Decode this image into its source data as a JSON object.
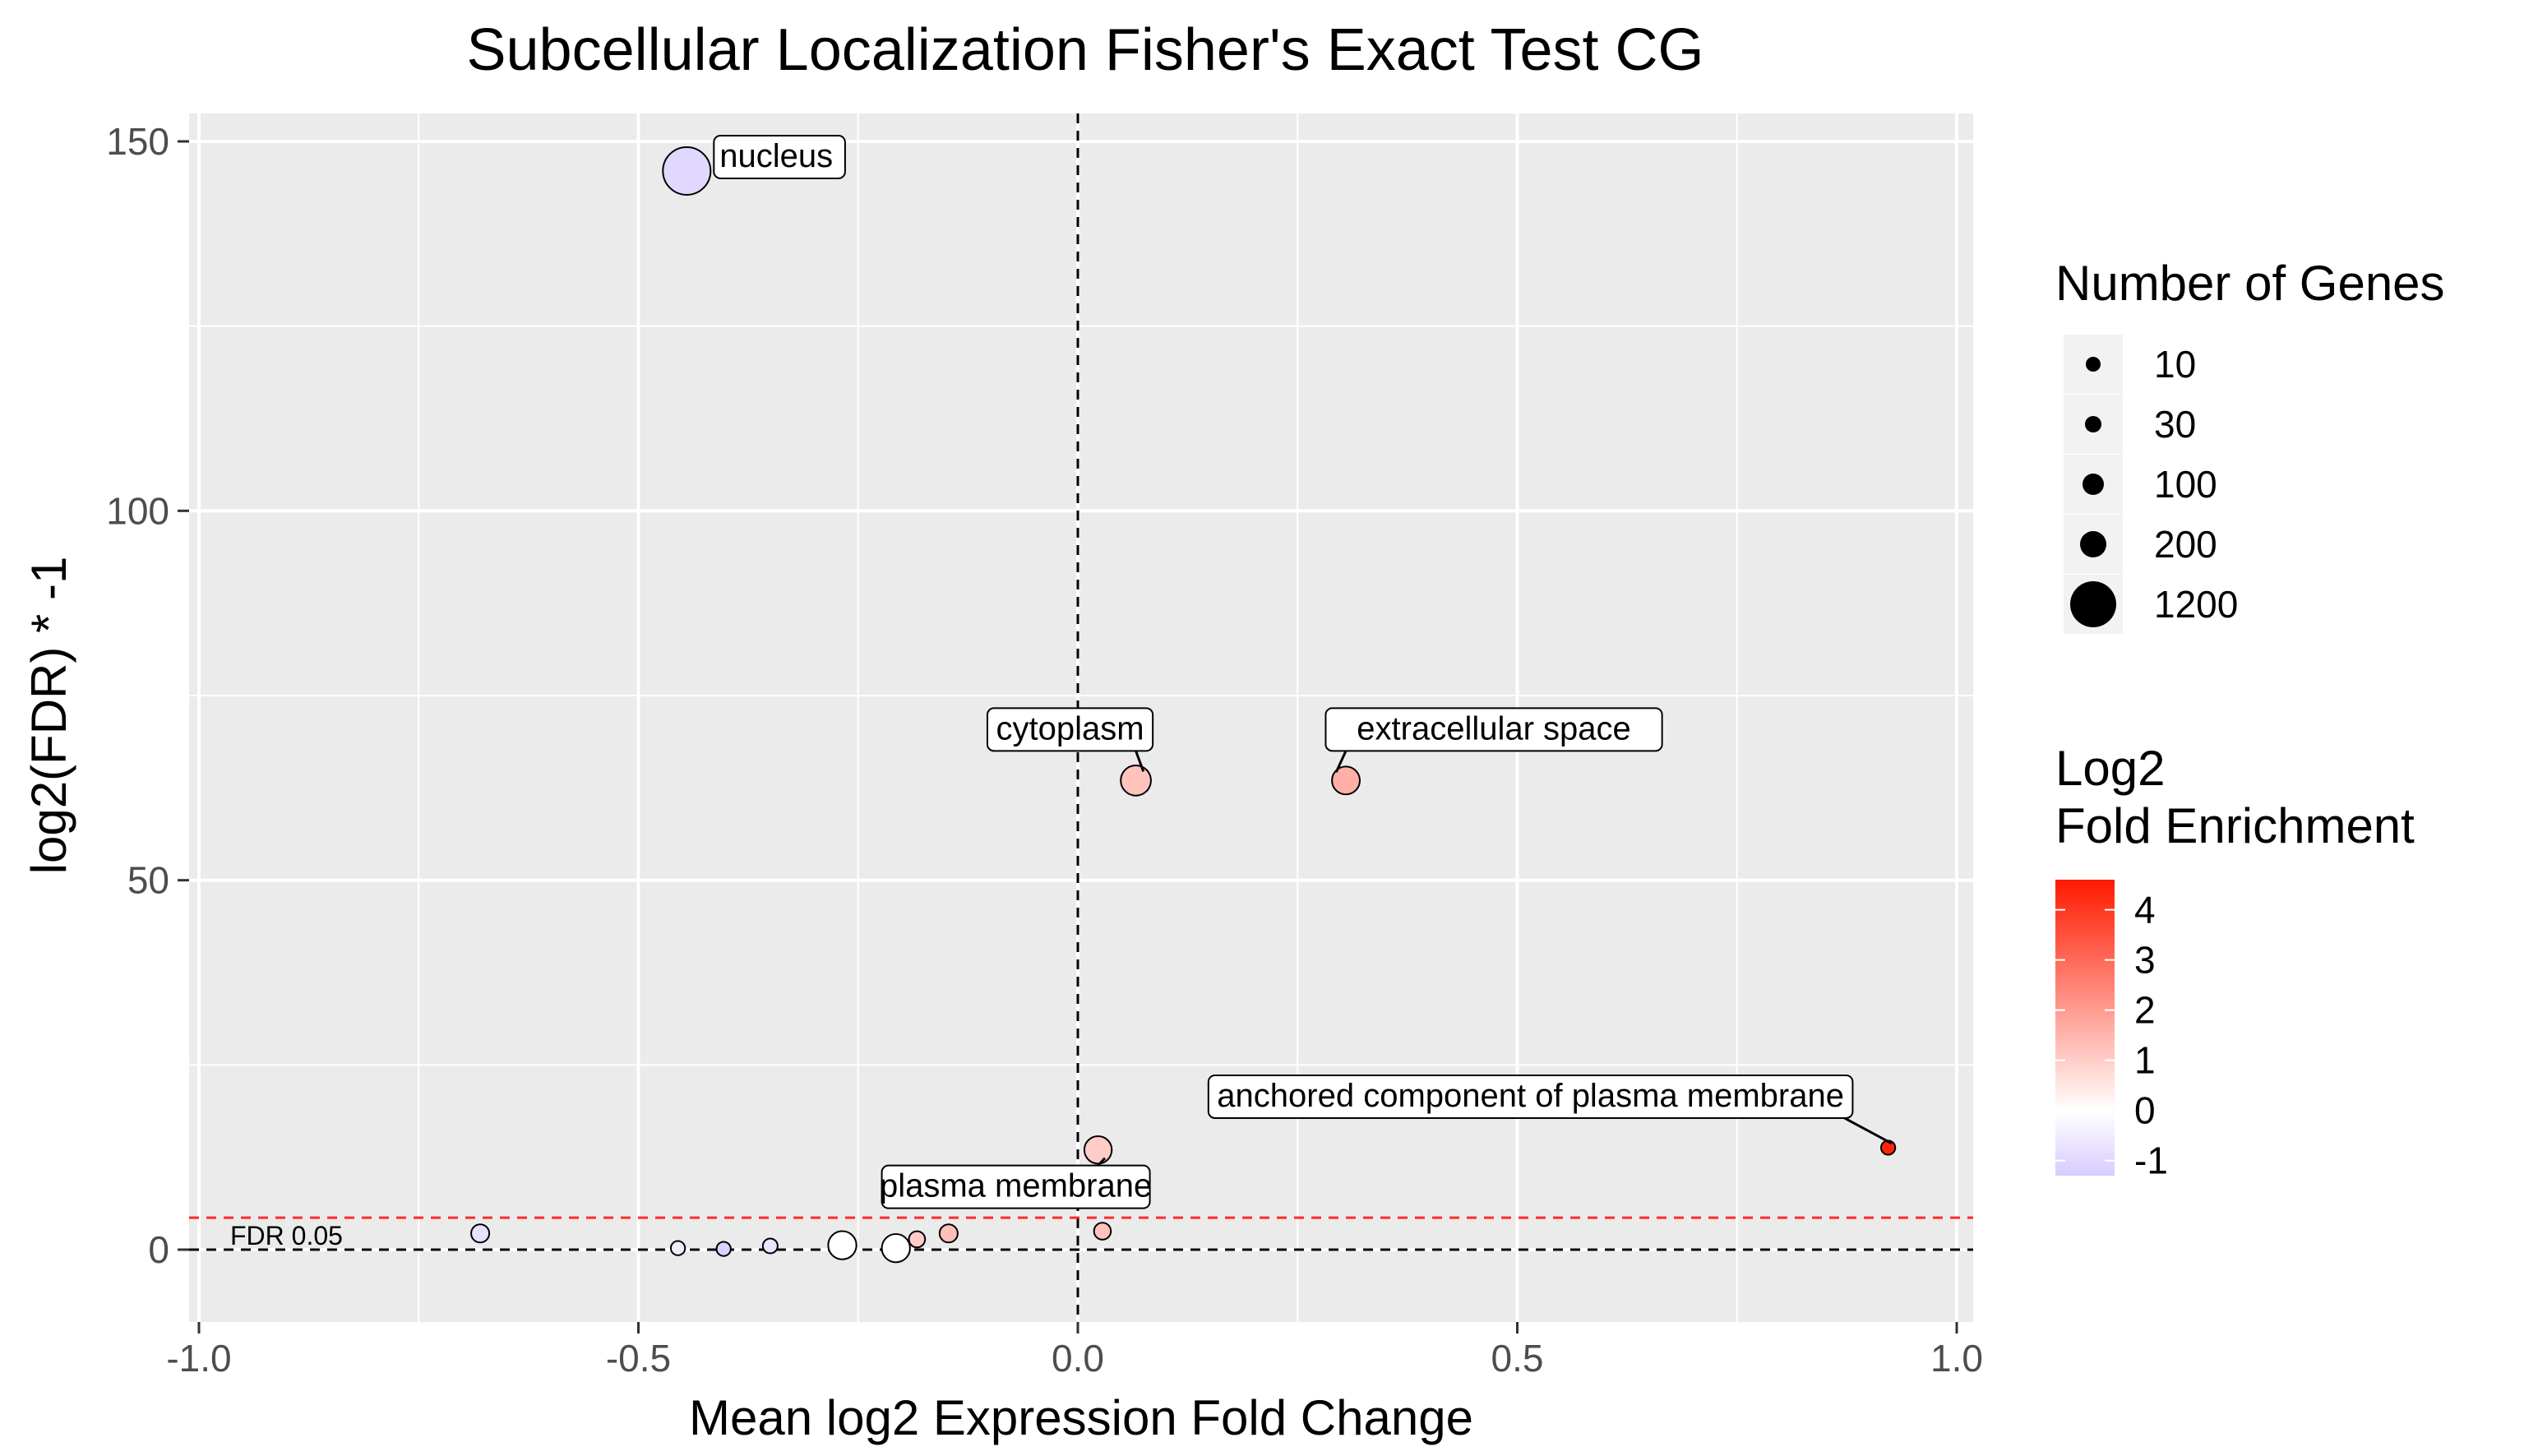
{
  "chart_data": {
    "type": "scatter",
    "title": "Subcellular Localization Fisher's Exact Test CG",
    "xlabel": "Mean log2 Expression Fold Change",
    "ylabel": "log2(FDR) * -1",
    "xlim": [
      -1.0,
      1.0
    ],
    "ylim": [
      -8,
      152
    ],
    "x_ticks": [
      "-1.0",
      "-0.5",
      "0.0",
      "0.5",
      "1.0"
    ],
    "y_ticks": [
      "0",
      "50",
      "100",
      "150"
    ],
    "grid": true,
    "vline_x": 0,
    "hline_fdr": {
      "y": 4.32,
      "color": "#ff2a2a",
      "label": "FDR 0.05"
    },
    "hline_zero": {
      "y": 0
    },
    "points": [
      {
        "x": -0.445,
        "y": 146.0,
        "genes": 1200,
        "fold": -1.0,
        "label": "nucleus"
      },
      {
        "x": 0.066,
        "y": 63.5,
        "genes": 200,
        "fold": 1.2,
        "label": "cytoplasm"
      },
      {
        "x": 0.305,
        "y": 63.5,
        "genes": 130,
        "fold": 1.6,
        "label": "extracellular space"
      },
      {
        "x": 0.922,
        "y": 13.8,
        "genes": 10,
        "fold": 4.4,
        "label": "anchored component of plasma membrane"
      },
      {
        "x": 0.023,
        "y": 13.5,
        "genes": 120,
        "fold": 1.0,
        "label": "plasma membrane"
      },
      {
        "x": -0.68,
        "y": 2.2,
        "genes": 60,
        "fold": -0.8,
        "label": ""
      },
      {
        "x": -0.455,
        "y": 0.2,
        "genes": 10,
        "fold": -0.5,
        "label": ""
      },
      {
        "x": -0.403,
        "y": 0.1,
        "genes": 10,
        "fold": -1.2,
        "label": ""
      },
      {
        "x": -0.35,
        "y": 0.5,
        "genes": 15,
        "fold": -0.7,
        "label": ""
      },
      {
        "x": -0.268,
        "y": 0.6,
        "genes": 140,
        "fold": 0.0,
        "label": ""
      },
      {
        "x": -0.207,
        "y": 0.2,
        "genes": 140,
        "fold": 0.0,
        "label": ""
      },
      {
        "x": -0.183,
        "y": 1.4,
        "genes": 30,
        "fold": 1.0,
        "label": ""
      },
      {
        "x": -0.147,
        "y": 2.2,
        "genes": 60,
        "fold": 1.3,
        "label": ""
      },
      {
        "x": 0.028,
        "y": 2.5,
        "genes": 40,
        "fold": 1.2,
        "label": ""
      }
    ],
    "size_legend": {
      "title": "Number of Genes",
      "items": [
        {
          "label": "10",
          "genes": 10
        },
        {
          "label": "30",
          "genes": 30
        },
        {
          "label": "100",
          "genes": 100
        },
        {
          "label": "200",
          "genes": 200
        },
        {
          "label": "1200",
          "genes": 1200
        }
      ]
    },
    "color_legend": {
      "title_line1": "Log2",
      "title_line2": "Fold Enrichment",
      "ticks": [
        "4",
        "3",
        "2",
        "1",
        "0",
        "-1"
      ],
      "range": [
        -1.3,
        4.6
      ],
      "low_color": "#d8ccff",
      "mid_color": "#ffffff",
      "high_color": "#ff1a00"
    }
  }
}
